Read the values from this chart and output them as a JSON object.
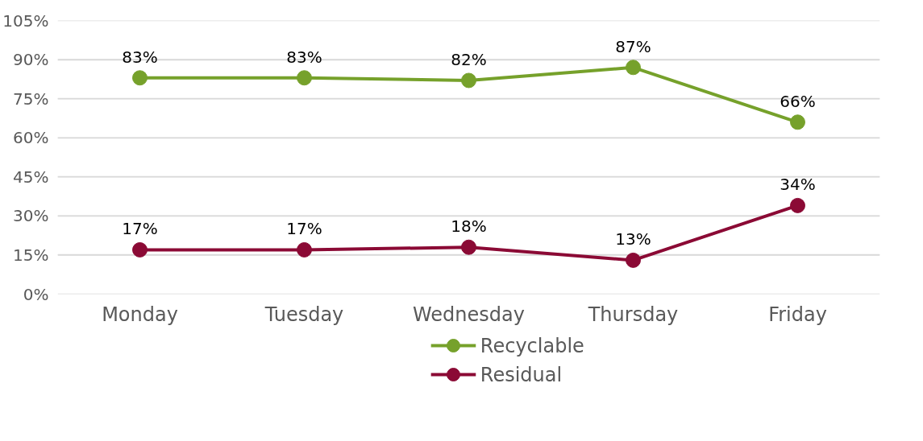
{
  "chart_data": {
    "type": "line",
    "categories": [
      "Monday",
      "Tuesday",
      "Wednesday",
      "Thursday",
      "Friday"
    ],
    "series": [
      {
        "name": "Recyclable",
        "color": "#76a12b",
        "values": [
          83,
          83,
          82,
          87,
          66
        ],
        "value_labels": [
          "83%",
          "83%",
          "82%",
          "87%",
          "66%"
        ]
      },
      {
        "name": "Residual",
        "color": "#8b0a35",
        "values": [
          17,
          17,
          18,
          13,
          34
        ],
        "value_labels": [
          "17%",
          "17%",
          "18%",
          "13%",
          "34%"
        ]
      }
    ],
    "ylim": [
      0,
      105
    ],
    "yticks": [
      {
        "value": 0,
        "label": "0%"
      },
      {
        "value": 15,
        "label": "15%"
      },
      {
        "value": 30,
        "label": "30%"
      },
      {
        "value": 45,
        "label": "45%"
      },
      {
        "value": 60,
        "label": "60%"
      },
      {
        "value": 75,
        "label": "75%"
      },
      {
        "value": 90,
        "label": "90%"
      },
      {
        "value": 105,
        "label": "105%"
      }
    ],
    "grid": "y",
    "legend": "bottom",
    "marker": "circle",
    "line_style": "solid"
  }
}
